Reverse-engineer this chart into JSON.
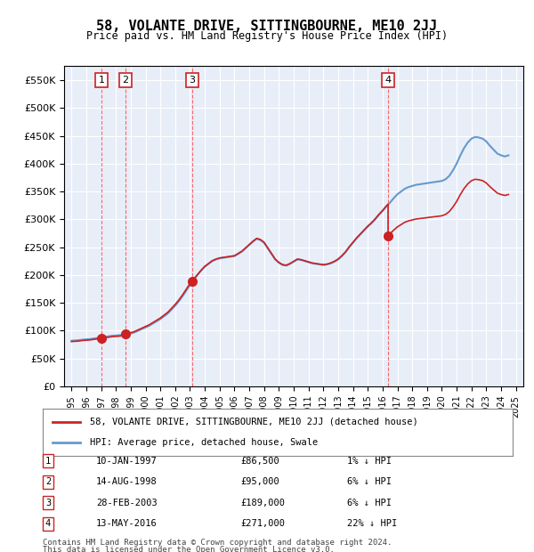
{
  "title": "58, VOLANTE DRIVE, SITTINGBOURNE, ME10 2JJ",
  "subtitle": "Price paid vs. HM Land Registry's House Price Index (HPI)",
  "ylabel_ticks": [
    "£0",
    "£50K",
    "£100K",
    "£150K",
    "£200K",
    "£250K",
    "£300K",
    "£350K",
    "£400K",
    "£450K",
    "£500K",
    "£550K"
  ],
  "ylim": [
    0,
    575000
  ],
  "xlim_start": 1994.5,
  "xlim_end": 2025.5,
  "background_color": "#e8eef8",
  "plot_bg_color": "#e8eef8",
  "sale_dates_numeric": [
    1997.03,
    1998.63,
    2003.16,
    2016.37
  ],
  "sale_prices": [
    86500,
    95000,
    189000,
    271000
  ],
  "sale_labels": [
    "1",
    "2",
    "3",
    "4"
  ],
  "sale_date_strings": [
    "10-JAN-1997",
    "14-AUG-1998",
    "28-FEB-2003",
    "13-MAY-2016"
  ],
  "sale_price_strings": [
    "£86,500",
    "£95,000",
    "£189,000",
    "£271,000"
  ],
  "sale_hpi_strings": [
    "1% ↓ HPI",
    "6% ↓ HPI",
    "6% ↓ HPI",
    "22% ↓ HPI"
  ],
  "legend_line1": "58, VOLANTE DRIVE, SITTINGBOURNE, ME10 2JJ (detached house)",
  "legend_line2": "HPI: Average price, detached house, Swale",
  "footer1": "Contains HM Land Registry data © Crown copyright and database right 2024.",
  "footer2": "This data is licensed under the Open Government Licence v3.0.",
  "hpi_color": "#6699cc",
  "sale_line_color": "#cc2222",
  "marker_color": "#cc2222",
  "vline_color": "#ff4444",
  "grid_color": "#ffffff",
  "hpi_data_years": [
    1995,
    1995.25,
    1995.5,
    1995.75,
    1996,
    1996.25,
    1996.5,
    1996.75,
    1997,
    1997.25,
    1997.5,
    1997.75,
    1998,
    1998.25,
    1998.5,
    1998.75,
    1999,
    1999.25,
    1999.5,
    1999.75,
    2000,
    2000.25,
    2000.5,
    2000.75,
    2001,
    2001.25,
    2001.5,
    2001.75,
    2002,
    2002.25,
    2002.5,
    2002.75,
    2003,
    2003.25,
    2003.5,
    2003.75,
    2004,
    2004.25,
    2004.5,
    2004.75,
    2005,
    2005.25,
    2005.5,
    2005.75,
    2006,
    2006.25,
    2006.5,
    2006.75,
    2007,
    2007.25,
    2007.5,
    2007.75,
    2008,
    2008.25,
    2008.5,
    2008.75,
    2009,
    2009.25,
    2009.5,
    2009.75,
    2010,
    2010.25,
    2010.5,
    2010.75,
    2011,
    2011.25,
    2011.5,
    2011.75,
    2012,
    2012.25,
    2012.5,
    2012.75,
    2013,
    2013.25,
    2013.5,
    2013.75,
    2014,
    2014.25,
    2014.5,
    2014.75,
    2015,
    2015.25,
    2015.5,
    2015.75,
    2016,
    2016.25,
    2016.5,
    2016.75,
    2017,
    2017.25,
    2017.5,
    2017.75,
    2018,
    2018.25,
    2018.5,
    2018.75,
    2019,
    2019.25,
    2019.5,
    2019.75,
    2020,
    2020.25,
    2020.5,
    2020.75,
    2021,
    2021.25,
    2021.5,
    2021.75,
    2022,
    2022.25,
    2022.5,
    2022.75,
    2023,
    2023.25,
    2023.5,
    2023.75,
    2024,
    2024.25,
    2024.5
  ],
  "hpi_data_values": [
    82000,
    82500,
    83000,
    84000,
    84500,
    85000,
    86000,
    87000,
    88000,
    89000,
    90000,
    91000,
    91500,
    92000,
    93000,
    94000,
    95000,
    97000,
    100000,
    103000,
    106000,
    109000,
    113000,
    117000,
    121000,
    126000,
    131000,
    138000,
    145000,
    153000,
    162000,
    172000,
    182000,
    192000,
    200000,
    208000,
    215000,
    220000,
    225000,
    228000,
    230000,
    231000,
    232000,
    233000,
    234000,
    238000,
    242000,
    248000,
    254000,
    260000,
    265000,
    263000,
    258000,
    248000,
    238000,
    228000,
    222000,
    218000,
    217000,
    220000,
    224000,
    228000,
    227000,
    225000,
    223000,
    221000,
    220000,
    219000,
    218000,
    219000,
    221000,
    224000,
    228000,
    234000,
    241000,
    250000,
    258000,
    266000,
    273000,
    280000,
    287000,
    293000,
    300000,
    308000,
    315000,
    323000,
    330000,
    338000,
    345000,
    350000,
    355000,
    358000,
    360000,
    362000,
    363000,
    364000,
    365000,
    366000,
    367000,
    368000,
    369000,
    372000,
    378000,
    388000,
    400000,
    415000,
    428000,
    438000,
    445000,
    448000,
    447000,
    445000,
    440000,
    432000,
    425000,
    418000,
    415000,
    413000,
    415000
  ],
  "property_line_x": [
    1997.03,
    1998.63,
    2003.16,
    2016.37
  ],
  "property_line_y": [
    86500,
    95000,
    189000,
    271000
  ]
}
